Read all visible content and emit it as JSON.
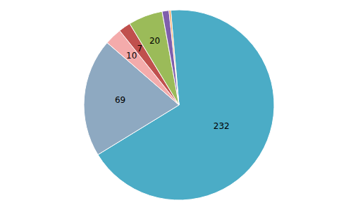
{
  "chart_data": {
    "type": "pie",
    "values": [
      232,
      69,
      10,
      7,
      20,
      4,
      1
    ],
    "value_labels": [
      "232",
      "69",
      "10",
      "7",
      "20",
      null,
      null
    ],
    "colors": [
      "#4BACC6",
      "#8EA9C1",
      "#F4ABAB",
      "#C0504D",
      "#9BBB59",
      "#7F5FAC",
      "#F79646"
    ]
  }
}
